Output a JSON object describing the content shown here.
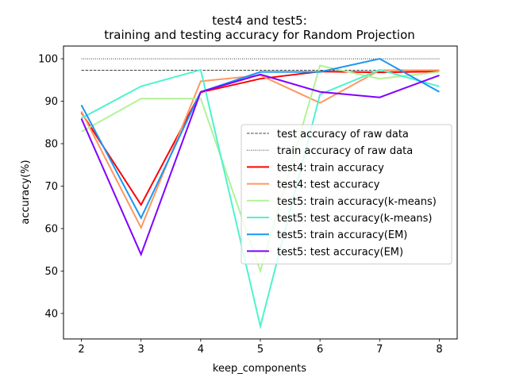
{
  "chart_data": {
    "type": "line",
    "title_lines": [
      "test4 and test5:",
      "training and testing accuracy for Random Projection"
    ],
    "xlabel": "keep_components",
    "ylabel": "accuracy(%)",
    "xlim": [
      1.7,
      8.3
    ],
    "ylim": [
      34,
      103
    ],
    "xticks": [
      2,
      3,
      4,
      5,
      6,
      7,
      8
    ],
    "yticks": [
      40,
      50,
      60,
      70,
      80,
      90,
      100
    ],
    "grid": false,
    "legend_position": "center-right",
    "reference_lines": [
      {
        "name": "test accuracy of raw data",
        "y": 97.3,
        "style": "dashed",
        "color": "#000000"
      },
      {
        "name": "train accuracy of raw data",
        "y": 100.0,
        "style": "dotted",
        "color": "#000000"
      }
    ],
    "x": [
      2,
      3,
      4,
      5,
      6,
      7,
      8
    ],
    "series": [
      {
        "name": "test4: train accuracy",
        "color": "#ff0000",
        "values": [
          87.3,
          65.6,
          92.1,
          95.3,
          97.0,
          96.8,
          97.0
        ]
      },
      {
        "name": "test4: test accuracy",
        "color": "#ff9660",
        "values": [
          87.6,
          60.2,
          94.7,
          96.1,
          89.6,
          97.3,
          97.3
        ]
      },
      {
        "name": "test5: train accuracy(k-means)",
        "color": "#b2f396",
        "values": [
          82.8,
          90.6,
          90.6,
          50.0,
          98.4,
          95.3,
          96.9
        ]
      },
      {
        "name": "test5: test accuracy(k-means)",
        "color": "#4df3ce",
        "values": [
          86.0,
          93.5,
          97.4,
          37.0,
          91.6,
          97.4,
          93.5
        ]
      },
      {
        "name": "test5: train accuracy(EM)",
        "color": "#1996f3",
        "values": [
          89.1,
          62.5,
          92.2,
          96.9,
          96.9,
          100.0,
          92.2
        ]
      },
      {
        "name": "test5: test accuracy(EM)",
        "color": "#8000ff",
        "values": [
          85.9,
          53.9,
          92.2,
          96.3,
          92.2,
          90.9,
          96.1
        ]
      }
    ]
  }
}
